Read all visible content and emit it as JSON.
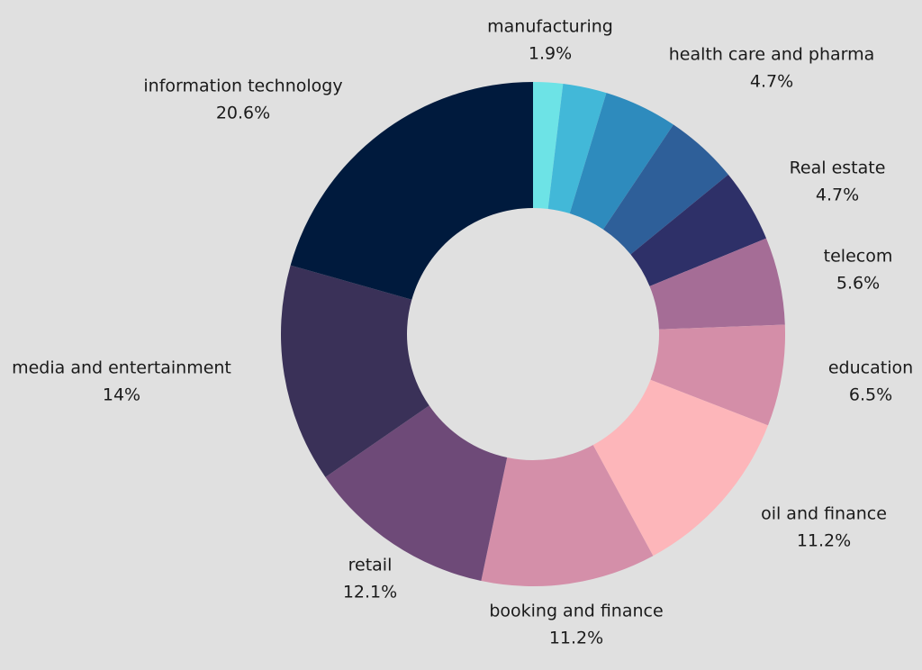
{
  "chart_data": {
    "type": "donut",
    "categories": [
      "manufacturing",
      null,
      "health care and pharma",
      "Real estate",
      null,
      "telecom",
      "education",
      "oil and finance",
      "booking and finance",
      "retail",
      "media and entertainment",
      "information technology"
    ],
    "values": [
      1.9,
      2.8,
      4.7,
      4.7,
      4.7,
      5.6,
      6.5,
      11.2,
      11.2,
      12.1,
      14,
      20.6
    ],
    "value_labels": [
      "1.9%",
      null,
      "4.7%",
      "4.7%",
      null,
      "5.6%",
      "6.5%",
      "11.2%",
      "11.2%",
      "12.1%",
      "14%",
      "20.6%"
    ],
    "colors": [
      "#6de3e6",
      "#42b8d8",
      "#2e8bbd",
      "#2e5f99",
      "#2e3068",
      "#a56d96",
      "#d48ea8",
      "#fdb6ba",
      "#d48fa9",
      "#6e4a78",
      "#3a3158",
      "#001a3d"
    ]
  }
}
